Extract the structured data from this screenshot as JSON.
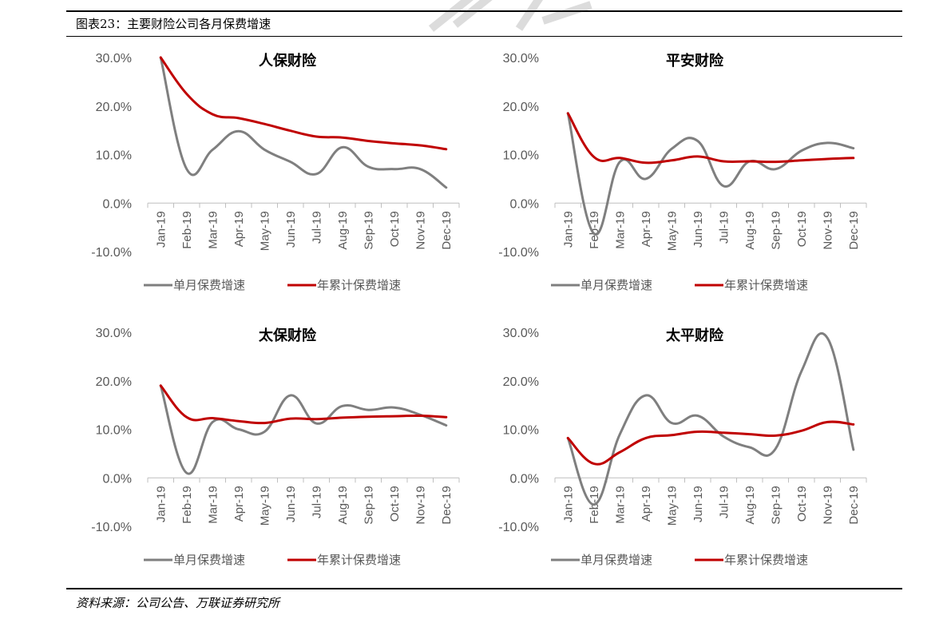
{
  "figure": {
    "title": "图表23：主要财险公司各月保费增速",
    "source": "资料来源：公司公告、万联证券研究所"
  },
  "chart_data": [
    {
      "type": "line",
      "title": "人保财险",
      "categories": [
        "Jan-19",
        "Feb-19",
        "Mar-19",
        "Apr-19",
        "May-19",
        "Jun-19",
        "Jul-19",
        "Aug-19",
        "Sep-19",
        "Oct-19",
        "Nov-19",
        "Dec-19"
      ],
      "yticks": [
        "30.0%",
        "20.0%",
        "10.0%",
        "0.0%",
        "-10.0%"
      ],
      "ylim": [
        -10,
        30
      ],
      "series": [
        {
          "name": "单月保费增速",
          "color": "#7f7f7f",
          "values": [
            30.0,
            7.0,
            11.0,
            14.8,
            11.0,
            8.5,
            6.0,
            11.5,
            7.5,
            7.0,
            7.0,
            3.2
          ]
        },
        {
          "name": "年累计保费增速",
          "color": "#c00000",
          "values": [
            30.0,
            22.5,
            18.3,
            17.5,
            16.3,
            14.9,
            13.7,
            13.5,
            12.8,
            12.3,
            11.9,
            11.1
          ]
        }
      ]
    },
    {
      "type": "line",
      "title": "平安财险",
      "categories": [
        "Jan-19",
        "Feb-19",
        "Mar-19",
        "Apr-19",
        "May-19",
        "Jun-19",
        "Jul-19",
        "Aug-19",
        "Sep-19",
        "Oct-19",
        "Nov-19",
        "Dec-19"
      ],
      "yticks": [
        "30.0%",
        "20.0%",
        "10.0%",
        "0.0%",
        "-10.0%"
      ],
      "ylim": [
        -10,
        30
      ],
      "series": [
        {
          "name": "单月保费增速",
          "color": "#7f7f7f",
          "values": [
            18.5,
            -6.3,
            8.5,
            5.0,
            11.2,
            12.8,
            3.5,
            8.6,
            7.0,
            10.8,
            12.4,
            11.3
          ]
        },
        {
          "name": "年累计保费增速",
          "color": "#c00000",
          "values": [
            18.5,
            9.5,
            9.3,
            8.3,
            8.8,
            9.6,
            8.6,
            8.6,
            8.5,
            8.8,
            9.1,
            9.3
          ]
        }
      ]
    },
    {
      "type": "line",
      "title": "太保财险",
      "categories": [
        "Jan-19",
        "Feb-19",
        "Mar-19",
        "Apr-19",
        "May-19",
        "Jun-19",
        "Jul-19",
        "Aug-19",
        "Sep-19",
        "Oct-19",
        "Nov-19",
        "Dec-19"
      ],
      "yticks": [
        "30.0%",
        "20.0%",
        "10.0%",
        "0.0%",
        "-10.0%"
      ],
      "ylim": [
        -10,
        30
      ],
      "series": [
        {
          "name": "单月保费增速",
          "color": "#7f7f7f",
          "values": [
            19.0,
            1.0,
            11.5,
            10.0,
            9.5,
            17.0,
            11.2,
            14.8,
            14.0,
            14.5,
            13.0,
            10.8
          ]
        },
        {
          "name": "年累计保费增速",
          "color": "#c00000",
          "values": [
            19.0,
            12.5,
            12.3,
            11.7,
            11.3,
            12.2,
            12.1,
            12.4,
            12.6,
            12.7,
            12.8,
            12.5
          ]
        }
      ]
    },
    {
      "type": "line",
      "title": "太平财险",
      "categories": [
        "Jan-19",
        "Feb-19",
        "Mar-19",
        "Apr-19",
        "May-19",
        "Jun-19",
        "Jul-19",
        "Aug-19",
        "Sep-19",
        "Oct-19",
        "Nov-19",
        "Dec-19"
      ],
      "yticks": [
        "30.0%",
        "20.0%",
        "10.0%",
        "0.0%",
        "-10.0%"
      ],
      "ylim": [
        -10,
        30
      ],
      "series": [
        {
          "name": "单月保费增速",
          "color": "#7f7f7f",
          "values": [
            8.2,
            -5.5,
            9.0,
            17.0,
            11.3,
            12.8,
            8.5,
            6.3,
            6.0,
            22.0,
            28.8,
            5.8
          ]
        },
        {
          "name": "年累计保费增速",
          "color": "#c00000",
          "values": [
            8.2,
            2.9,
            5.3,
            8.2,
            8.8,
            9.5,
            9.3,
            9.0,
            8.7,
            9.7,
            11.5,
            11.0
          ]
        }
      ]
    }
  ]
}
